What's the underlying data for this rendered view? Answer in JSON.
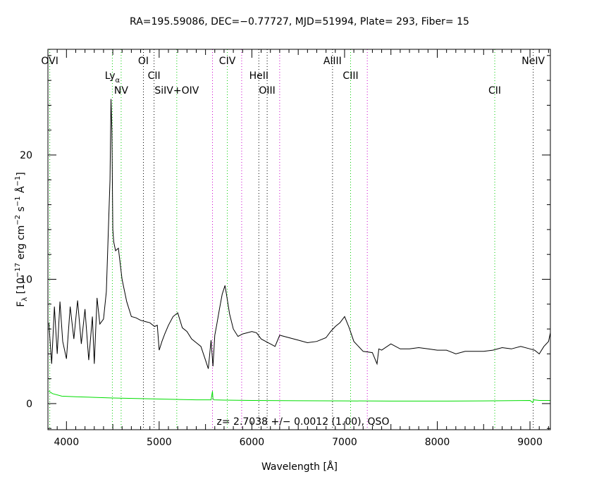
{
  "chart_data": {
    "type": "line",
    "title": "RA=195.59086, DEC=−0.77727, MJD=51994, Plate= 293, Fiber= 15",
    "xlabel": "Wavelength [Å]",
    "ylabel_parts": {
      "f": "F",
      "lambda": "λ",
      "bracket": "[10",
      "exp1": "−17",
      "erg": "erg cm",
      "exp2": "−2",
      "s": "s",
      "exp3": "−1",
      "ang": "Å",
      "exp4": "−1",
      "close": "]"
    },
    "xlim": [
      3800,
      9220
    ],
    "ylim": [
      -2.1,
      28.5
    ],
    "xticks": [
      4000,
      5000,
      6000,
      7000,
      8000,
      9000
    ],
    "xtick_labels": [
      "4000",
      "5000",
      "6000",
      "7000",
      "8000",
      "9000"
    ],
    "yticks": [
      0,
      10,
      20
    ],
    "ytick_labels": [
      "0",
      "10",
      "20"
    ],
    "annotation": "z= 2.7038 +/− 0.0012 (1.00), QSO",
    "colors": {
      "spectrum": "#000000",
      "error": "#00dd00",
      "green_line": "#00cc00",
      "magenta_line": "#cc00cc",
      "black_line": "#000000"
    },
    "series": [
      {
        "name": "",
        "role": "flux",
        "x": [
          3810,
          3840,
          3870,
          3900,
          3930,
          3960,
          4000,
          4040,
          4080,
          4120,
          4160,
          4200,
          4240,
          4280,
          4300,
          4330,
          4360,
          4400,
          4430,
          4450,
          4470,
          4480,
          4490,
          4500,
          4510,
          4530,
          4560,
          4600,
          4650,
          4700,
          4750,
          4800,
          4850,
          4900,
          4950,
          4980,
          5000,
          5030,
          5060,
          5100,
          5150,
          5200,
          5250,
          5300,
          5350,
          5400,
          5450,
          5500,
          5530,
          5560,
          5580,
          5600,
          5620,
          5650,
          5680,
          5710,
          5730,
          5760,
          5800,
          5850,
          5900,
          6000,
          6050,
          6100,
          6200,
          6250,
          6300,
          6400,
          6500,
          6600,
          6700,
          6800,
          6850,
          6900,
          6950,
          7000,
          7050,
          7100,
          7200,
          7300,
          7350,
          7370,
          7400,
          7500,
          7600,
          7700,
          7800,
          7900,
          8000,
          8100,
          8200,
          8300,
          8400,
          8500,
          8600,
          8700,
          8800,
          8900,
          9000,
          9050,
          9100,
          9150,
          9200,
          9220
        ],
        "y": [
          6.5,
          3.2,
          7.8,
          4.0,
          8.2,
          5.0,
          3.6,
          7.8,
          5.2,
          8.3,
          4.8,
          7.6,
          3.5,
          7.0,
          3.2,
          8.5,
          6.4,
          6.8,
          9.0,
          13.5,
          18.0,
          24.5,
          22.0,
          14.0,
          13.0,
          12.3,
          12.5,
          10.0,
          8.2,
          7.0,
          6.9,
          6.7,
          6.6,
          6.5,
          6.2,
          6.3,
          4.3,
          5.0,
          5.6,
          6.3,
          7.0,
          7.3,
          6.1,
          5.8,
          5.2,
          4.9,
          4.6,
          3.5,
          2.8,
          5.1,
          3.0,
          5.5,
          6.3,
          7.6,
          8.8,
          9.5,
          8.6,
          7.2,
          6.0,
          5.4,
          5.6,
          5.8,
          5.7,
          5.2,
          4.8,
          4.6,
          5.5,
          5.3,
          5.1,
          4.9,
          5.0,
          5.3,
          5.8,
          6.2,
          6.5,
          7.0,
          6.1,
          5.0,
          4.2,
          4.1,
          3.2,
          4.4,
          4.3,
          4.8,
          4.4,
          4.4,
          4.5,
          4.4,
          4.3,
          4.3,
          4.0,
          4.2,
          4.2,
          4.2,
          4.3,
          4.5,
          4.4,
          4.6,
          4.4,
          4.3,
          4.0,
          4.6,
          5.0,
          5.7
        ]
      },
      {
        "name": "",
        "role": "error",
        "x": [
          3810,
          3850,
          3950,
          4100,
          4300,
          4500,
          4800,
          5100,
          5400,
          5560,
          5575,
          5580,
          5590,
          5700,
          6000,
          6500,
          7000,
          7500,
          8000,
          8500,
          9000,
          9030,
          9040,
          9100,
          9220
        ],
        "y": [
          1.0,
          0.8,
          0.6,
          0.55,
          0.5,
          0.45,
          0.4,
          0.35,
          0.3,
          0.3,
          1.0,
          0.4,
          0.3,
          0.28,
          0.25,
          0.23,
          0.22,
          0.2,
          0.2,
          0.22,
          0.25,
          0.08,
          0.3,
          0.25,
          0.25
        ]
      }
    ],
    "lines": [
      {
        "label": "OVI",
        "x": 3820,
        "color": "green",
        "row": 1
      },
      {
        "label": "Ly",
        "sub": "α",
        "x": 4495,
        "color": "green",
        "row": 2
      },
      {
        "label": "NV",
        "x": 4590,
        "color": "green",
        "row": 3
      },
      {
        "label": "OI",
        "x": 4830,
        "color": "black",
        "row": 1
      },
      {
        "label": "CII",
        "x": 4945,
        "color": "black",
        "row": 2
      },
      {
        "label": "SiIV+OIV",
        "x": 5190,
        "color": "green",
        "row": 3
      },
      {
        "label": "",
        "x": 5575,
        "color": "magenta",
        "row": 0
      },
      {
        "label": "CIV",
        "x": 5735,
        "color": "green",
        "row": 1
      },
      {
        "label": "",
        "x": 5890,
        "color": "magenta",
        "row": 0
      },
      {
        "label": "HeII",
        "x": 6075,
        "color": "black",
        "row": 2
      },
      {
        "label": "OIII",
        "x": 6165,
        "color": "black",
        "row": 3
      },
      {
        "label": "",
        "x": 6300,
        "color": "magenta",
        "row": 0
      },
      {
        "label": "AlIII",
        "x": 6870,
        "color": "black",
        "row": 1
      },
      {
        "label": "CIII",
        "x": 7065,
        "color": "green",
        "row": 2
      },
      {
        "label": "",
        "x": 7245,
        "color": "magenta",
        "row": 0
      },
      {
        "label": "CII",
        "x": 8620,
        "color": "green",
        "row": 3
      },
      {
        "label": "NeIV",
        "x": 9035,
        "color": "black",
        "row": 1
      }
    ]
  }
}
